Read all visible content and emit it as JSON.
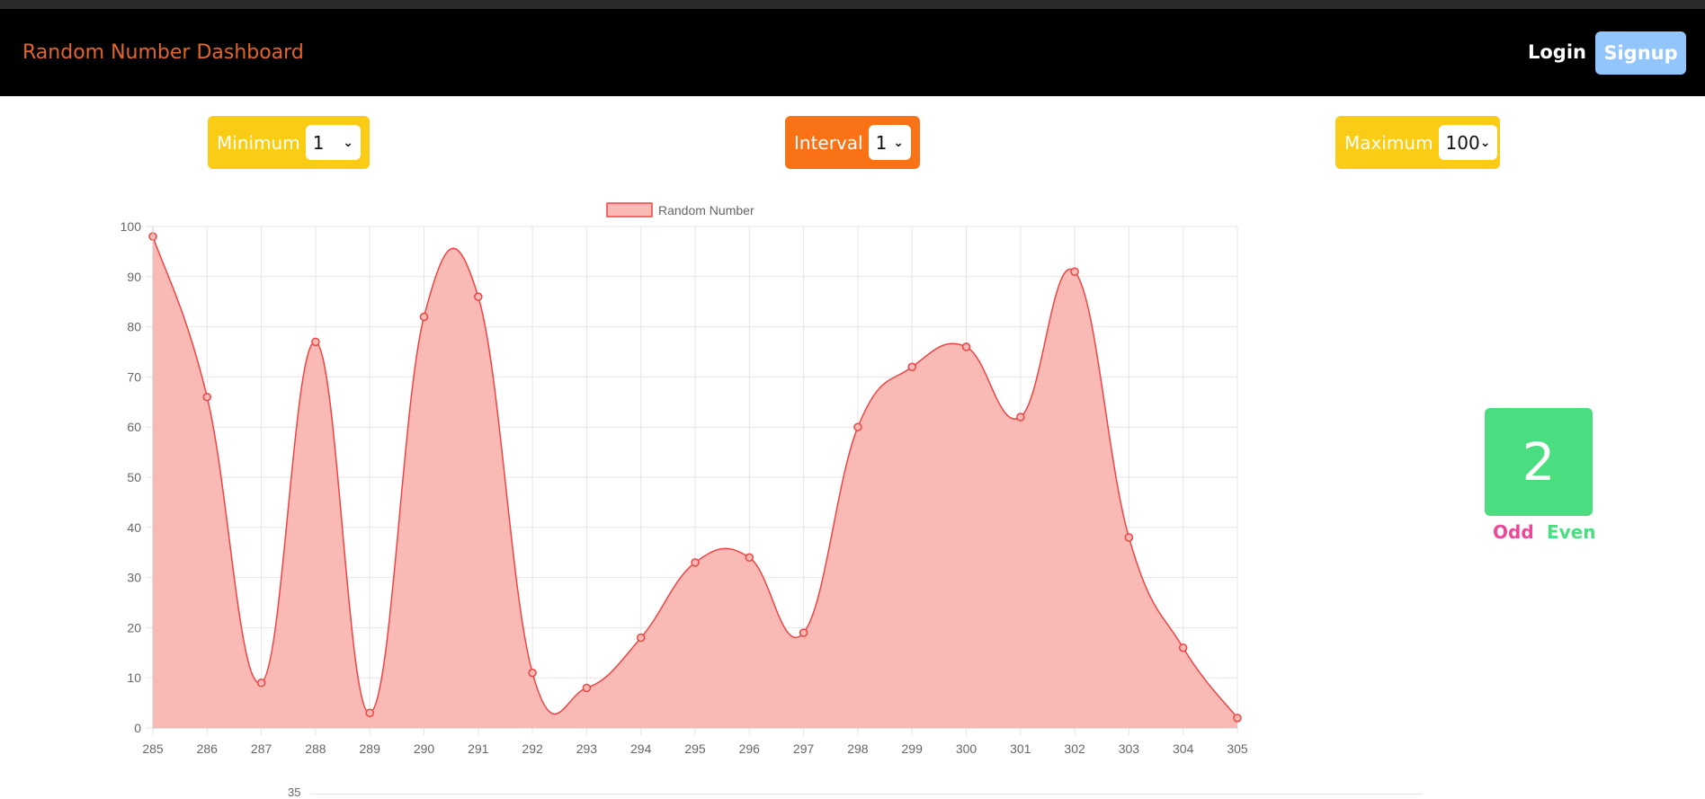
{
  "navbar": {
    "brand": "Random Number Dashboard",
    "login_label": "Login",
    "signup_label": "Signup"
  },
  "controls": {
    "minimum": {
      "label": "Minimum",
      "value": "1"
    },
    "interval": {
      "label": "Interval",
      "value": "1"
    },
    "maximum": {
      "label": "Maximum",
      "value": "100"
    }
  },
  "current": {
    "value": "2",
    "odd_label": "Odd",
    "even_label": "Even"
  },
  "next_chart_peek_tick": "35",
  "colors": {
    "navbar_bg": "#000000",
    "brand": "#e2652a",
    "signup_bg": "#93c5fd",
    "min_max_bg": "#facc15",
    "interval_bg": "#f97316",
    "number_box": "#4ade80",
    "odd": "#ec4899",
    "even": "#4ade80",
    "series_line": "#ef4444",
    "series_fill": "#f9b9b4"
  },
  "icons": {
    "select": "chevron-down-icon"
  },
  "chart_data": {
    "type": "area",
    "legend": "top",
    "grid": true,
    "ylim": [
      0,
      100
    ],
    "yticks": [
      0,
      10,
      20,
      30,
      40,
      50,
      60,
      70,
      80,
      90,
      100
    ],
    "x": [
      285,
      286,
      287,
      288,
      289,
      290,
      291,
      292,
      293,
      294,
      295,
      296,
      297,
      298,
      299,
      300,
      301,
      302,
      303,
      304,
      305
    ],
    "series": [
      {
        "name": "Random Number",
        "values": [
          98,
          66,
          9,
          77,
          3,
          82,
          86,
          11,
          8,
          18,
          33,
          34,
          19,
          60,
          72,
          76,
          62,
          91,
          38,
          16,
          2
        ]
      }
    ]
  }
}
